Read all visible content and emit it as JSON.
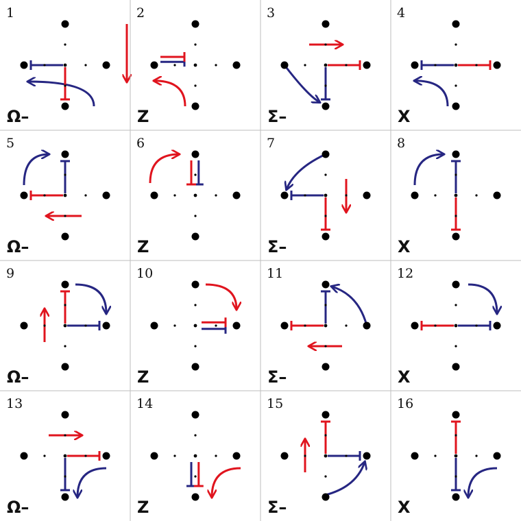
{
  "colors": {
    "red": "#e0141e",
    "blue": "#262682",
    "dot": "#000000",
    "grid": "#bdbdbd"
  },
  "panels": [
    {
      "n": "1",
      "label": "Ω–",
      "red": [
        {
          "k": "seg",
          "p": "C",
          "q": "S"
        },
        {
          "k": "arrow",
          "p": [
            1.5,
            -1
          ],
          "q": [
            1.5,
            0.4
          ]
        }
      ],
      "blue": [
        {
          "k": "seg",
          "p": "C",
          "q": "W"
        },
        {
          "k": "turn",
          "p": [
            0.7,
            1
          ],
          "q": [
            -0.9,
            0.4
          ]
        }
      ]
    },
    {
      "n": "2",
      "label": "Z",
      "red": [
        {
          "k": "seg",
          "p": [
            -0.9,
            -0.2
          ],
          "q": [
            -0.1,
            -0.2
          ]
        },
        {
          "k": "turn",
          "p": [
            -0.25,
            1
          ],
          "q": [
            -1.0,
            0.38
          ]
        }
      ],
      "blue": [
        {
          "k": "seg",
          "p": [
            -0.9,
            -0.08
          ],
          "q": [
            -0.1,
            -0.08
          ]
        }
      ]
    },
    {
      "n": "3",
      "label": "Σ–",
      "red": [
        {
          "k": "seg",
          "p": "C",
          "q": "E"
        },
        {
          "k": "arrow",
          "p": [
            -0.4,
            -0.5
          ],
          "q": [
            0.4,
            -0.5
          ]
        }
      ],
      "blue": [
        {
          "k": "seg",
          "p": "C",
          "q": "S"
        },
        {
          "k": "curve",
          "p": "W",
          "q": [
            -0.15,
            0.9
          ],
          "c": [
            -0.45,
            0.72
          ]
        }
      ]
    },
    {
      "n": "4",
      "label": "X",
      "red": [
        {
          "k": "seg",
          "p": "C",
          "q": "E"
        }
      ],
      "blue": [
        {
          "k": "seg",
          "p": "C",
          "q": "W"
        },
        {
          "k": "turn",
          "p": [
            -0.2,
            1
          ],
          "q": [
            -1.0,
            0.38
          ]
        }
      ]
    },
    {
      "n": "5",
      "label": "Ω–",
      "red": [
        {
          "k": "seg",
          "p": "C",
          "q": "W"
        },
        {
          "k": "arrow",
          "p": [
            0.4,
            0.5
          ],
          "q": [
            -0.45,
            0.5
          ]
        }
      ],
      "blue": [
        {
          "k": "seg",
          "p": "C",
          "q": "N"
        },
        {
          "k": "turnUp",
          "p": [
            -1.0,
            -0.25
          ],
          "q": [
            -0.4,
            -1.0
          ]
        }
      ]
    },
    {
      "n": "6",
      "label": "Z",
      "red": [
        {
          "k": "seg",
          "p": [
            -0.1,
            -0.9
          ],
          "q": [
            -0.1,
            -0.1
          ]
        },
        {
          "k": "turnUp",
          "p": [
            -1.1,
            -0.3
          ],
          "q": [
            -0.4,
            -1.0
          ]
        }
      ],
      "blue": [
        {
          "k": "seg",
          "p": [
            0.08,
            -0.9
          ],
          "q": [
            0.08,
            -0.1
          ]
        }
      ]
    },
    {
      "n": "7",
      "label": "Σ–",
      "red": [
        {
          "k": "seg",
          "p": "C",
          "q": "S"
        },
        {
          "k": "arrow",
          "p": [
            0.5,
            -0.4
          ],
          "q": [
            0.5,
            0.4
          ]
        }
      ],
      "blue": [
        {
          "k": "seg",
          "p": "C",
          "q": "W"
        },
        {
          "k": "curve",
          "p": "N",
          "q": [
            -0.95,
            -0.15
          ],
          "c": [
            -0.75,
            -0.65
          ]
        }
      ]
    },
    {
      "n": "8",
      "label": "X",
      "red": [
        {
          "k": "seg",
          "p": "C",
          "q": "S"
        }
      ],
      "blue": [
        {
          "k": "seg",
          "p": "C",
          "q": "N"
        },
        {
          "k": "turnUp",
          "p": [
            -1.0,
            -0.25
          ],
          "q": [
            -0.3,
            -1.0
          ]
        }
      ]
    },
    {
      "n": "9",
      "label": "Ω–",
      "red": [
        {
          "k": "seg",
          "p": "C",
          "q": "N"
        },
        {
          "k": "arrow",
          "p": [
            -0.5,
            0.4
          ],
          "q": [
            -0.5,
            -0.4
          ]
        }
      ],
      "blue": [
        {
          "k": "seg",
          "p": "C",
          "q": "E"
        },
        {
          "k": "turnR",
          "p": [
            0.25,
            -1.0
          ],
          "q": [
            1.0,
            -0.3
          ]
        }
      ]
    },
    {
      "n": "10",
      "label": "Z",
      "red": [
        {
          "k": "seg",
          "p": [
            0.1,
            -0.08
          ],
          "q": [
            0.9,
            -0.08
          ]
        },
        {
          "k": "turnR",
          "p": [
            0.25,
            -1.0
          ],
          "q": [
            1.0,
            -0.4
          ]
        }
      ],
      "blue": [
        {
          "k": "seg",
          "p": [
            0.1,
            0.08
          ],
          "q": [
            0.9,
            0.08
          ]
        }
      ]
    },
    {
      "n": "11",
      "label": "Σ–",
      "red": [
        {
          "k": "seg",
          "p": "C",
          "q": "W"
        },
        {
          "k": "arrow",
          "p": [
            0.4,
            0.5
          ],
          "q": [
            -0.4,
            0.5
          ]
        }
      ],
      "blue": [
        {
          "k": "seg",
          "p": "C",
          "q": "N"
        },
        {
          "k": "curve",
          "p": "E",
          "q": [
            0.15,
            -0.95
          ],
          "c": [
            0.8,
            -0.75
          ]
        }
      ]
    },
    {
      "n": "12",
      "label": "X",
      "red": [
        {
          "k": "seg",
          "p": "C",
          "q": "W"
        }
      ],
      "blue": [
        {
          "k": "seg",
          "p": "C",
          "q": "E"
        },
        {
          "k": "turnR",
          "p": [
            0.3,
            -1.0
          ],
          "q": [
            1.0,
            -0.3
          ]
        }
      ]
    },
    {
      "n": "13",
      "label": "Ω–",
      "red": [
        {
          "k": "seg",
          "p": "C",
          "q": "E"
        },
        {
          "k": "arrow",
          "p": [
            -0.4,
            -0.5
          ],
          "q": [
            0.4,
            -0.5
          ]
        }
      ],
      "blue": [
        {
          "k": "seg",
          "p": "C",
          "q": "S"
        },
        {
          "k": "turnDown",
          "p": [
            1.0,
            0.3
          ],
          "q": [
            0.3,
            1.0
          ]
        }
      ]
    },
    {
      "n": "14",
      "label": "Z",
      "red": [
        {
          "k": "seg",
          "p": [
            0.08,
            0.1
          ],
          "q": [
            0.08,
            0.9
          ]
        },
        {
          "k": "turnDown",
          "p": [
            1.1,
            0.3
          ],
          "q": [
            0.4,
            1.0
          ]
        }
      ],
      "blue": [
        {
          "k": "seg",
          "p": [
            -0.1,
            0.1
          ],
          "q": [
            -0.1,
            0.9
          ]
        }
      ]
    },
    {
      "n": "15",
      "label": "Σ–",
      "red": [
        {
          "k": "seg",
          "p": "C",
          "q": "N"
        },
        {
          "k": "arrow",
          "p": [
            -0.5,
            0.4
          ],
          "q": [
            -0.5,
            -0.4
          ]
        }
      ],
      "blue": [
        {
          "k": "seg",
          "p": "C",
          "q": "E"
        },
        {
          "k": "curve",
          "p": [
            0.0,
            0.95
          ],
          "q": [
            0.95,
            0.15
          ],
          "c": [
            0.75,
            0.75
          ]
        }
      ]
    },
    {
      "n": "16",
      "label": "X",
      "red": [
        {
          "k": "seg",
          "p": "C",
          "q": "N"
        }
      ],
      "blue": [
        {
          "k": "seg",
          "p": "C",
          "q": "S"
        },
        {
          "k": "turnDown",
          "p": [
            1.0,
            0.3
          ],
          "q": [
            0.3,
            1.0
          ]
        }
      ]
    }
  ]
}
